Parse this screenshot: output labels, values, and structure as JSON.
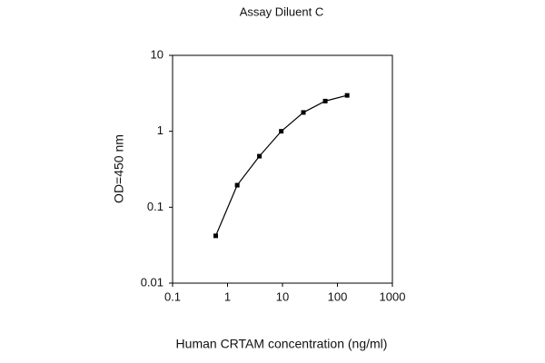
{
  "chart_data": {
    "type": "line",
    "title": "Assay Diluent C",
    "x_label": "Human CRTAM concentration (ng/ml)",
    "y_label": "OD=450 nm",
    "x": [
      0.61,
      1.5,
      3.8,
      9.5,
      24,
      60,
      150
    ],
    "series": [
      {
        "name": "Assay Diluent C",
        "color": "#000000",
        "values": [
          0.042,
          0.195,
          0.47,
          1.0,
          1.77,
          2.5,
          2.97
        ]
      }
    ],
    "xlim": [
      0.1,
      1000
    ],
    "xticks": [
      0.1,
      1,
      10,
      100,
      1000
    ],
    "ylim": [
      0.01,
      10
    ],
    "yticks": [
      0.01,
      0.1,
      1,
      10
    ],
    "xscale": "log",
    "yscale": "log",
    "grid": false
  }
}
